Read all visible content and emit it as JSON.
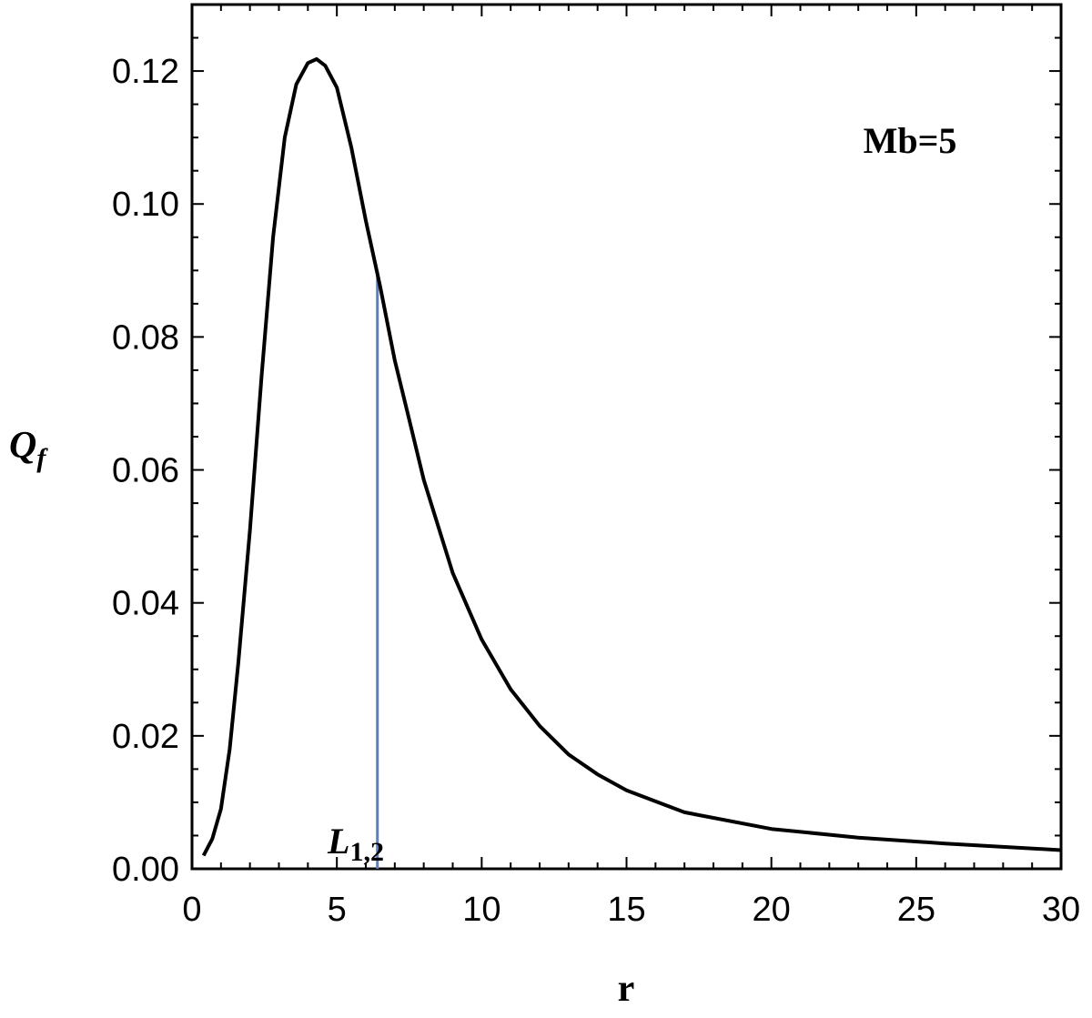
{
  "chart_data": {
    "type": "line",
    "xlabel": "r",
    "ylabel": {
      "main": "Q",
      "sub": "f"
    },
    "xlim": [
      0,
      30
    ],
    "ylim": [
      0,
      0.13
    ],
    "x_ticks": [
      "0",
      "5",
      "10",
      "15",
      "20",
      "25",
      "30"
    ],
    "y_ticks": [
      "0.00",
      "0.02",
      "0.04",
      "0.06",
      "0.08",
      "0.10",
      "0.12"
    ],
    "grid": false,
    "annotation": "Mb=5",
    "marker": {
      "x": 6.4,
      "y": 0.09,
      "label_main": "L",
      "label_sub": "1,2",
      "color": "#5b7fbf"
    },
    "series": [
      {
        "color": "#000000",
        "x": [
          0.4,
          0.7,
          1.0,
          1.3,
          1.6,
          2.0,
          2.4,
          2.8,
          3.2,
          3.6,
          4.0,
          4.3,
          4.6,
          5.0,
          5.5,
          6.0,
          6.5,
          7.0,
          7.5,
          8.0,
          9.0,
          10.0,
          11.0,
          12.0,
          13.0,
          14.0,
          15.0,
          17.0,
          20.0,
          23.0,
          26.0,
          30.0
        ],
        "y": [
          0.002,
          0.0045,
          0.009,
          0.018,
          0.031,
          0.051,
          0.074,
          0.095,
          0.11,
          0.118,
          0.1212,
          0.1218,
          0.1208,
          0.1175,
          0.1085,
          0.0975,
          0.0875,
          0.0765,
          0.0675,
          0.0585,
          0.0445,
          0.0345,
          0.027,
          0.0215,
          0.0172,
          0.0142,
          0.0118,
          0.0085,
          0.006,
          0.0047,
          0.0038,
          0.0028
        ]
      }
    ]
  }
}
